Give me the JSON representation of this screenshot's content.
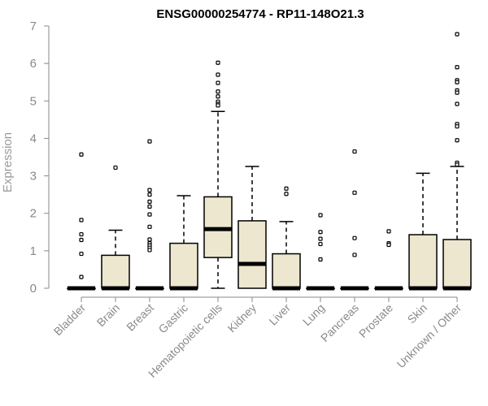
{
  "chart_data": {
    "type": "boxplot",
    "title": "ENSG00000254774 - RP11-148O21.3",
    "xlabel": "",
    "ylabel": "Expression",
    "ylim": [
      0,
      7
    ],
    "yticks": [
      0,
      1,
      2,
      3,
      4,
      5,
      6,
      7
    ],
    "grid": false,
    "colors": {
      "box_fill": "#ede7cf",
      "box_stroke": "#000000",
      "axis": "#8a8a8a"
    },
    "categories": [
      "Bladder",
      "Brain",
      "Breast",
      "Gastric",
      "Hematopoietic cells",
      "Kidney",
      "Liver",
      "Lung",
      "Pancreas",
      "Prostate",
      "Skin",
      "Unknown / Other"
    ],
    "boxes": [
      {
        "category": "Bladder",
        "q1": 0,
        "median": 0,
        "q3": 0,
        "whisker_low": 0,
        "whisker_high": 0,
        "outliers": [
          3.57,
          1.82,
          1.44,
          1.29,
          0.92,
          0.3
        ]
      },
      {
        "category": "Brain",
        "q1": 0,
        "median": 0,
        "q3": 0.88,
        "whisker_low": 0,
        "whisker_high": 1.55,
        "outliers": [
          3.22
        ]
      },
      {
        "category": "Breast",
        "q1": 0,
        "median": 0,
        "q3": 0,
        "whisker_low": 0,
        "whisker_high": 0,
        "outliers": [
          3.92,
          2.62,
          2.5,
          2.31,
          2.18,
          1.97,
          1.64,
          1.3,
          1.2,
          1.14,
          1.08,
          1.02
        ]
      },
      {
        "category": "Gastric",
        "q1": 0,
        "median": 0,
        "q3": 1.2,
        "whisker_low": 0,
        "whisker_high": 2.47,
        "outliers": []
      },
      {
        "category": "Hematopoietic cells",
        "q1": 0.82,
        "median": 1.58,
        "q3": 2.44,
        "whisker_low": 0,
        "whisker_high": 4.72,
        "outliers": [
          6.02,
          5.7,
          5.48,
          5.25,
          5.12,
          4.98,
          4.92,
          4.88
        ]
      },
      {
        "category": "Kidney",
        "q1": 0,
        "median": 0.65,
        "q3": 1.8,
        "whisker_low": 0,
        "whisker_high": 3.25,
        "outliers": []
      },
      {
        "category": "Liver",
        "q1": 0,
        "median": 0,
        "q3": 0.92,
        "whisker_low": 0,
        "whisker_high": 1.78,
        "outliers": [
          2.66,
          2.52
        ]
      },
      {
        "category": "Lung",
        "q1": 0,
        "median": 0,
        "q3": 0,
        "whisker_low": 0,
        "whisker_high": 0,
        "outliers": [
          1.95,
          1.5,
          1.32,
          1.18,
          0.77
        ]
      },
      {
        "category": "Pancreas",
        "q1": 0,
        "median": 0,
        "q3": 0,
        "whisker_low": 0,
        "whisker_high": 0,
        "outliers": [
          3.65,
          2.55,
          1.34,
          0.89
        ]
      },
      {
        "category": "Prostate",
        "q1": 0,
        "median": 0,
        "q3": 0,
        "whisker_low": 0,
        "whisker_high": 0,
        "outliers": [
          1.52,
          1.2,
          1.16
        ]
      },
      {
        "category": "Skin",
        "q1": 0,
        "median": 0,
        "q3": 1.43,
        "whisker_low": 0,
        "whisker_high": 3.07,
        "outliers": []
      },
      {
        "category": "Unknown / Other",
        "q1": 0,
        "median": 0,
        "q3": 1.3,
        "whisker_low": 0,
        "whisker_high": 3.25,
        "outliers": [
          6.78,
          5.9,
          5.55,
          5.5,
          5.28,
          5.22,
          4.92,
          4.38,
          4.32,
          3.95,
          3.35,
          3.3
        ]
      }
    ]
  }
}
